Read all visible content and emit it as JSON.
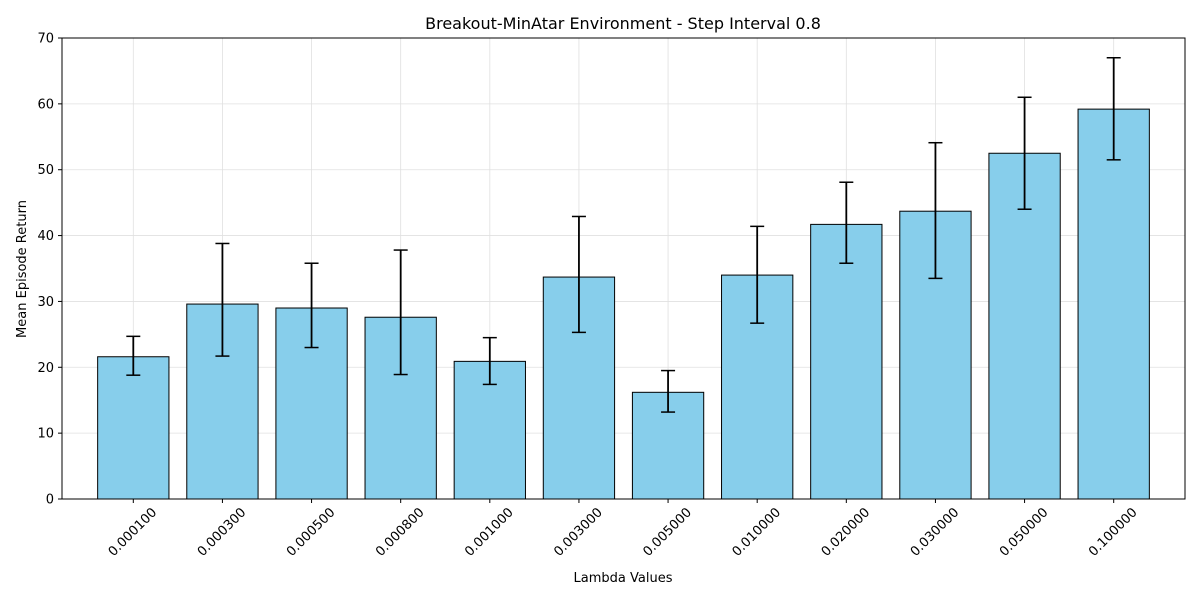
{
  "chart_data": {
    "type": "bar",
    "title": "Breakout-MinAtar Environment - Step Interval 0.8",
    "xlabel": "Lambda Values",
    "ylabel": "Mean Episode Return",
    "categories": [
      "0.000100",
      "0.000300",
      "0.000500",
      "0.000800",
      "0.001000",
      "0.003000",
      "0.005000",
      "0.010000",
      "0.020000",
      "0.030000",
      "0.050000",
      "0.100000"
    ],
    "values": [
      21.6,
      29.6,
      29.0,
      27.6,
      20.9,
      33.7,
      16.2,
      34.0,
      41.7,
      43.7,
      52.5,
      59.2
    ],
    "error_low": [
      18.8,
      21.7,
      23.0,
      18.9,
      17.4,
      25.3,
      13.2,
      26.7,
      35.8,
      33.5,
      44.0,
      51.5
    ],
    "error_high": [
      24.7,
      38.8,
      35.8,
      37.8,
      24.5,
      42.9,
      19.5,
      41.4,
      48.1,
      54.1,
      61.0,
      67.0
    ],
    "ylim": [
      0,
      70
    ],
    "yticks": [
      0,
      10,
      20,
      30,
      40,
      50,
      60,
      70
    ],
    "grid": true,
    "bar_color": "#87ceeb",
    "edge_color": "#000000",
    "error_color": "#000000",
    "grid_color": "#e0e0e0",
    "xtick_rotation": 45
  }
}
